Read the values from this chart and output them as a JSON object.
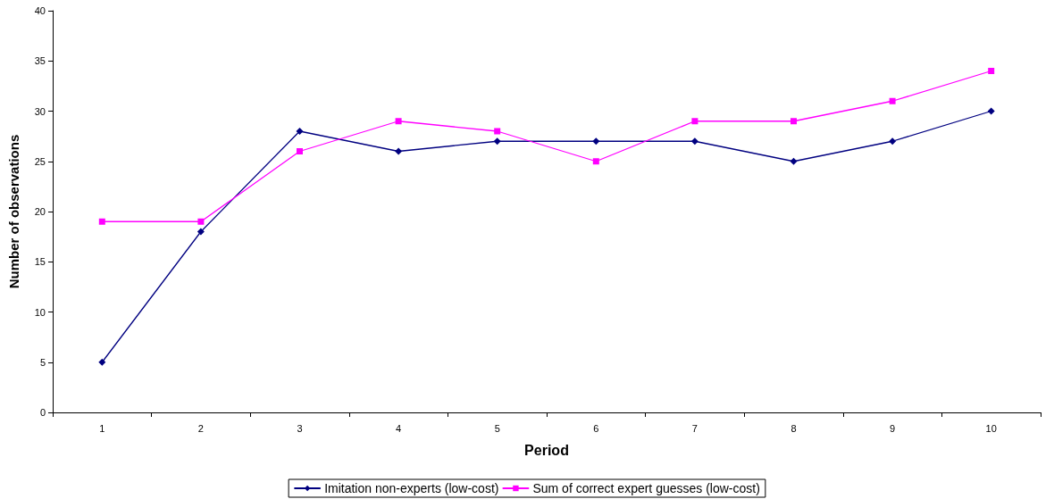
{
  "chart_data": {
    "type": "line",
    "xlabel": "Period",
    "ylabel": "Number of observations",
    "categories": [
      "1",
      "2",
      "3",
      "4",
      "5",
      "6",
      "7",
      "8",
      "9",
      "10"
    ],
    "series": [
      {
        "name": "Imitation non-experts (low-cost)",
        "color": "#000080",
        "marker": "diamond",
        "values": [
          5,
          18,
          28,
          26,
          27,
          27,
          27,
          25,
          27,
          30
        ]
      },
      {
        "name": "Sum of correct expert guesses (low-cost)",
        "color": "#ff00ff",
        "marker": "square",
        "values": [
          19,
          19,
          26,
          29,
          28,
          25,
          29,
          29,
          31,
          34
        ]
      }
    ],
    "ylim": [
      0,
      40
    ],
    "yticks": [
      0,
      5,
      10,
      15,
      20,
      25,
      30,
      35,
      40
    ],
    "grid": false,
    "legend": "bottom",
    "line_style": "solid"
  }
}
